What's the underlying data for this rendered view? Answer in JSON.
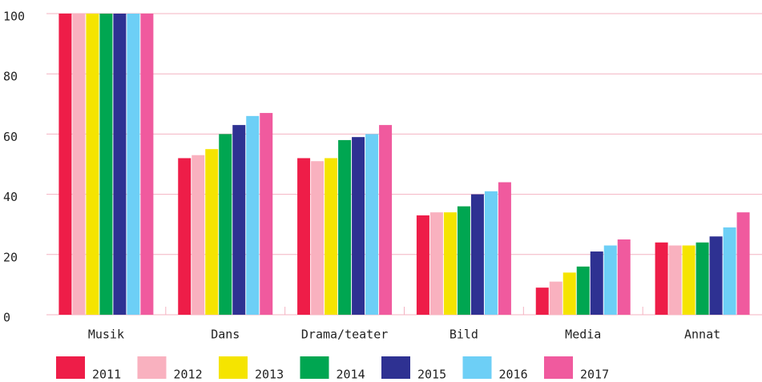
{
  "chart_data": {
    "type": "bar",
    "categories": [
      "Musik",
      "Dans",
      "Drama/teater",
      "Bild",
      "Media",
      "Annat"
    ],
    "series": [
      {
        "name": "2011",
        "color": "#ee1d48",
        "values": [
          100,
          52,
          52,
          33,
          9,
          24
        ]
      },
      {
        "name": "2012",
        "color": "#f9b1bf",
        "values": [
          100,
          53,
          51,
          34,
          11,
          23
        ]
      },
      {
        "name": "2013",
        "color": "#f5e400",
        "values": [
          100,
          55,
          52,
          34,
          14,
          23
        ]
      },
      {
        "name": "2014",
        "color": "#00a651",
        "values": [
          100,
          60,
          58,
          36,
          16,
          24
        ]
      },
      {
        "name": "2015",
        "color": "#2e3192",
        "values": [
          100,
          63,
          59,
          40,
          21,
          26
        ]
      },
      {
        "name": "2016",
        "color": "#6dcff6",
        "values": [
          100,
          66,
          60,
          41,
          23,
          29
        ]
      },
      {
        "name": "2017",
        "color": "#f05a9e",
        "values": [
          100,
          67,
          63,
          44,
          25,
          34
        ]
      }
    ],
    "ylim": [
      0,
      100
    ],
    "yticks": [
      0,
      20,
      40,
      60,
      80,
      100
    ],
    "grid": true,
    "legend": "bottom"
  }
}
